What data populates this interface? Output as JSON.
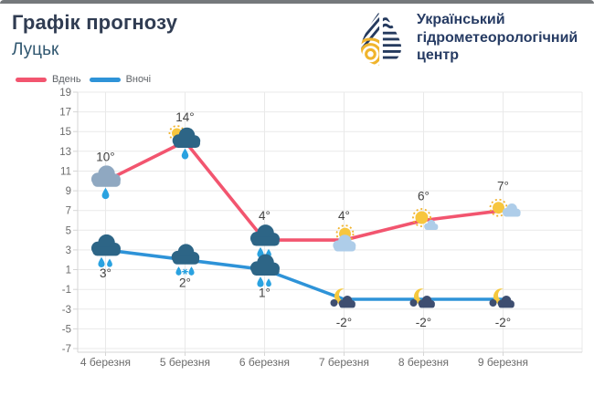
{
  "page": {
    "title": "Графік прогнозу",
    "subtitle": "Луцьк"
  },
  "logo": {
    "line1": "Український",
    "line2": "гідрометеорологічний",
    "line3": "центр"
  },
  "legend": {
    "items": [
      {
        "label": "Вдень",
        "color": "#f2556f"
      },
      {
        "label": "Вночі",
        "color": "#2e93d8"
      }
    ]
  },
  "chart_data": {
    "type": "line",
    "categories": [
      "4 березня",
      "5 березня",
      "6 березня",
      "7 березня",
      "8 березня",
      "9 березня"
    ],
    "series": [
      {
        "name": "Вдень",
        "color": "#f2556f",
        "values": [
          10,
          14,
          4,
          4,
          6,
          7
        ],
        "point_labels": [
          "10°",
          "14°",
          "4°",
          "4°",
          "6°",
          "7°"
        ],
        "icons": [
          "rain-cloud-light",
          "sun-rain-cloud",
          "rain-cloud-dark",
          "sun-behind-cloud",
          "sun-small-cloud",
          "sun-cloud-right"
        ],
        "label_position": "above"
      },
      {
        "name": "Вночі",
        "color": "#2e93d8",
        "values": [
          3,
          2,
          1,
          -2,
          -2,
          -2
        ],
        "point_labels": [
          "3°",
          "2°",
          "1°",
          "-2°",
          "-2°",
          "-2°"
        ],
        "icons": [
          "rain-cloud-dark",
          "rain-snow-cloud-dark",
          "rain-cloud-dark",
          "moon-cloud",
          "moon-cloud",
          "moon-cloud"
        ],
        "label_position": "below"
      }
    ],
    "ylim": [
      -7,
      19
    ],
    "yticks": [
      19,
      17,
      15,
      13,
      11,
      9,
      7,
      5,
      3,
      1,
      -1,
      -3,
      -5,
      -7
    ],
    "xlabel": "",
    "ylabel": "",
    "grid": true,
    "legend_position": "top-left"
  },
  "colors": {
    "grid": "#e9e9e9",
    "axis_line": "#d6d6d6",
    "axis_text": "#6b6b6b",
    "temp_label": "#414141",
    "day": "#f2556f",
    "night": "#2e93d8",
    "dark_cloud": "#2d6586",
    "light_cloud": "#aecde9",
    "gray_cloud": "#8fa8c1",
    "night_cloud": "#3e4e70",
    "raindrop": "#2aa2e0",
    "sun": "#f7c63e",
    "sun_rays": "#f1b32d",
    "moon": "#f5c83d",
    "logo_navy": "#253a5e",
    "logo_yellow": "#f0b42c"
  }
}
